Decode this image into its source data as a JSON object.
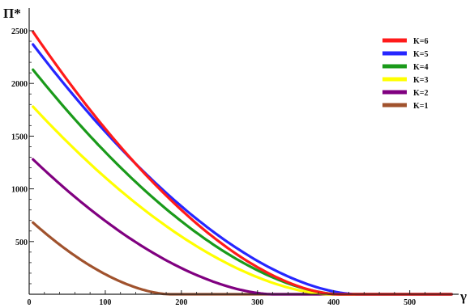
{
  "chart_data": {
    "type": "line",
    "ylabel": "Π*",
    "xlabel": "γ",
    "xlim": [
      0,
      560
    ],
    "ylim": [
      0,
      2500
    ],
    "x_ticks": [
      0,
      100,
      200,
      300,
      400,
      500
    ],
    "x_tick_labels": [
      "0",
      "100",
      "200",
      "300",
      "400",
      "500"
    ],
    "y_ticks": [
      500,
      1000,
      1500,
      2000,
      2500
    ],
    "y_tick_labels": [
      "500",
      "1000",
      "1500",
      "2000",
      "2500"
    ],
    "grid": false,
    "legend_position": "top-right",
    "series": [
      {
        "name": "K=6",
        "color": "#ff1a1a",
        "y0": 2490,
        "zero_at": 405
      },
      {
        "name": "K=5",
        "color": "#2626ff",
        "y0": 2370,
        "zero_at": 430
      },
      {
        "name": "K=4",
        "color": "#1a9a1a",
        "y0": 2130,
        "zero_at": 408
      },
      {
        "name": "K=3",
        "color": "#ffff00",
        "y0": 1780,
        "zero_at": 395
      },
      {
        "name": "K=2",
        "color": "#800080",
        "y0": 1280,
        "zero_at": 320
      },
      {
        "name": "K=1",
        "color": "#a0522d",
        "y0": 680,
        "zero_at": 185
      }
    ]
  }
}
